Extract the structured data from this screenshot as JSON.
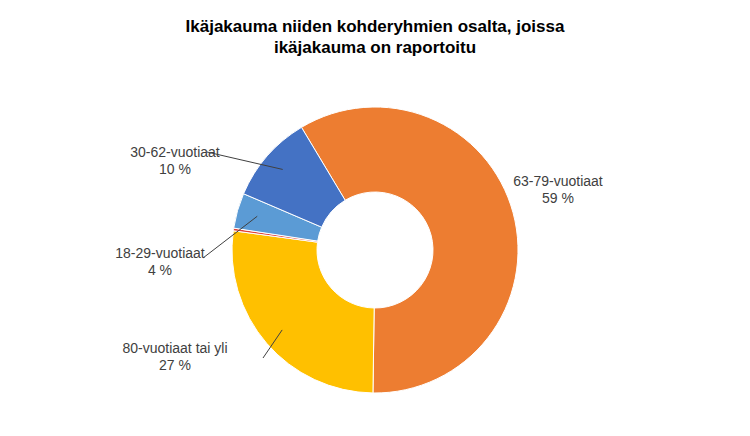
{
  "chart_data": {
    "type": "pie",
    "title": "Ikäjakauma niiden kohderyhmien osalta, joissa ikäjakauma on raportoitu",
    "categories": [
      "63-79-vuotiaat",
      "80-vuotiaat tai yli",
      null,
      "18-29-vuotiaat",
      "30-62-vuotiaat"
    ],
    "values": [
      59,
      27,
      0.3,
      4,
      10
    ],
    "value_labels": [
      "59 %",
      "27 %",
      null,
      "4 %",
      "10 %"
    ],
    "colors": [
      "#ed7d31",
      "#ffc000",
      "#e0433a",
      "#5b9bd5",
      "#4472c4"
    ],
    "data_labels": true
  }
}
